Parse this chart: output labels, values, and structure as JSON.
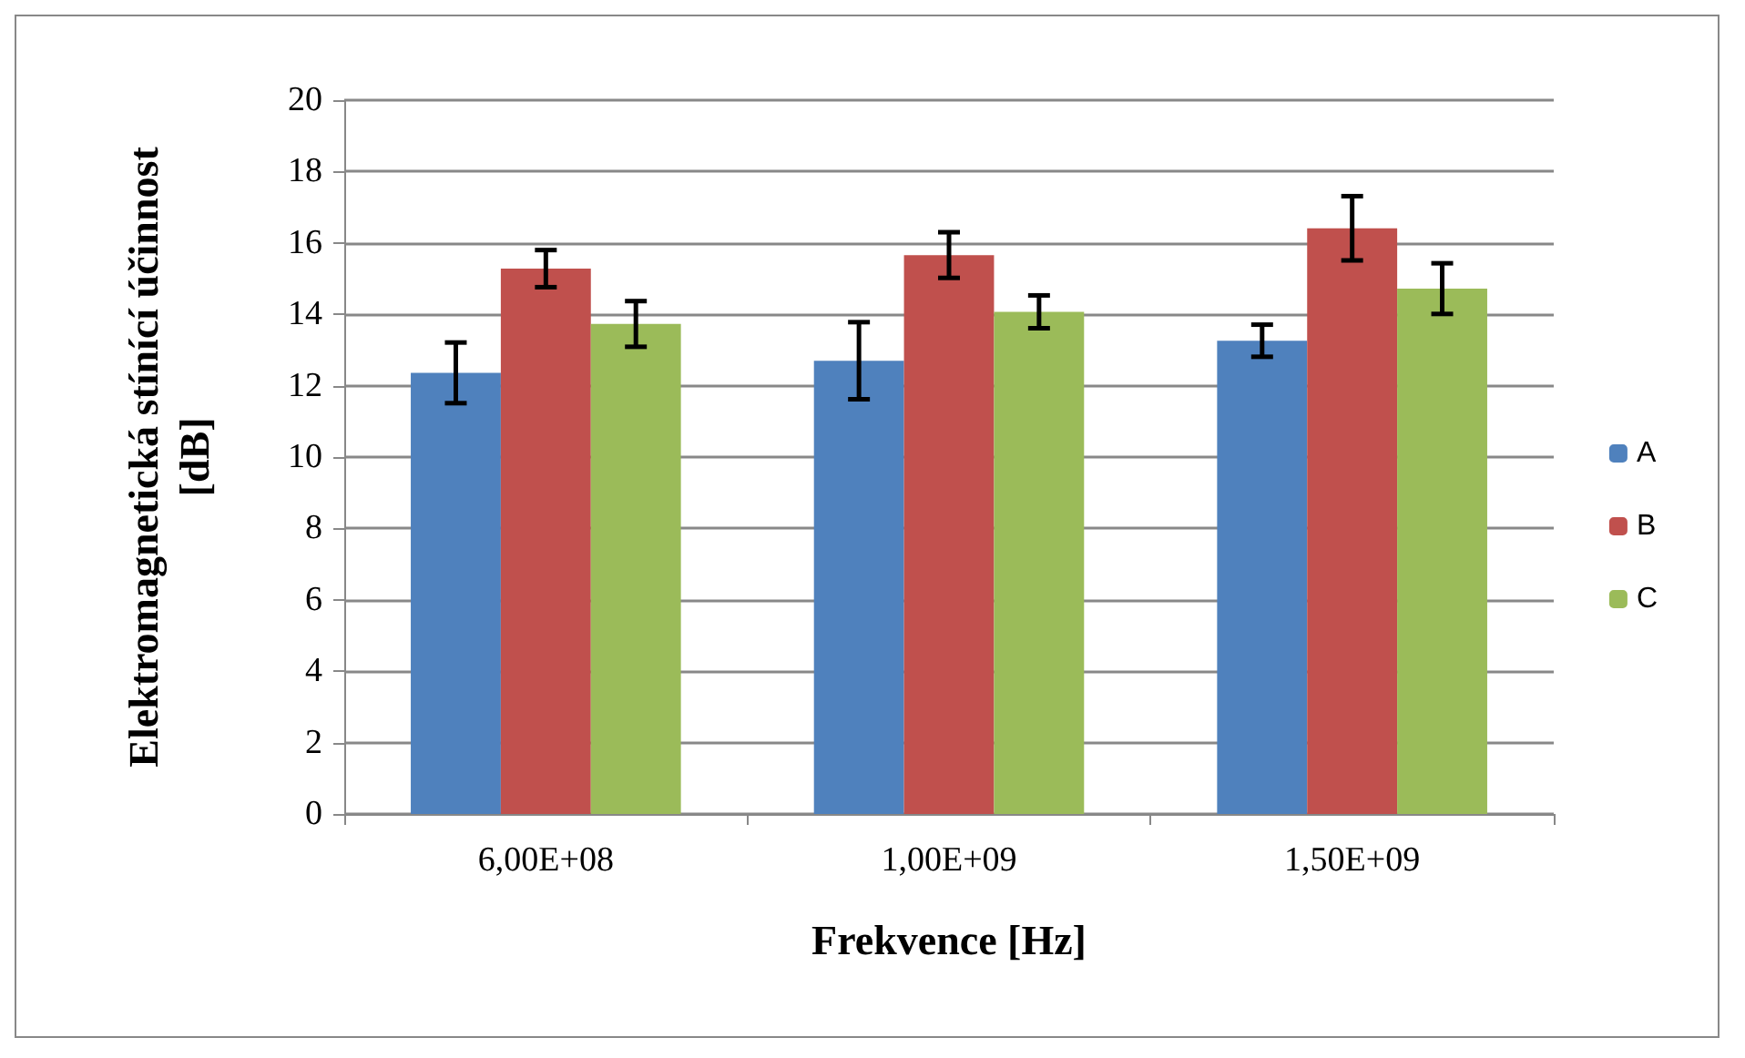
{
  "chart_data": {
    "type": "bar",
    "xlabel": "Frekvence [Hz]",
    "ylabel": "Elektromagnetická stínící účinnost [dB]",
    "categories": [
      "6,00E+08",
      "1,00E+09",
      "1,50E+09"
    ],
    "series": [
      {
        "name": "A",
        "color": "#4f81bd",
        "values": [
          12.36,
          12.7,
          13.26
        ],
        "errors": [
          0.85,
          1.08,
          0.45
        ]
      },
      {
        "name": "B",
        "color": "#c0504d",
        "values": [
          15.28,
          15.66,
          16.41
        ],
        "errors": [
          0.52,
          0.64,
          0.9
        ]
      },
      {
        "name": "C",
        "color": "#9bbb59",
        "values": [
          13.73,
          14.07,
          14.72
        ],
        "errors": [
          0.64,
          0.46,
          0.71
        ]
      }
    ],
    "ylim": [
      0,
      20
    ],
    "yticks": [
      0,
      2,
      4,
      6,
      8,
      10,
      12,
      14,
      16,
      18,
      20
    ],
    "grid": "y",
    "legend": "right"
  }
}
